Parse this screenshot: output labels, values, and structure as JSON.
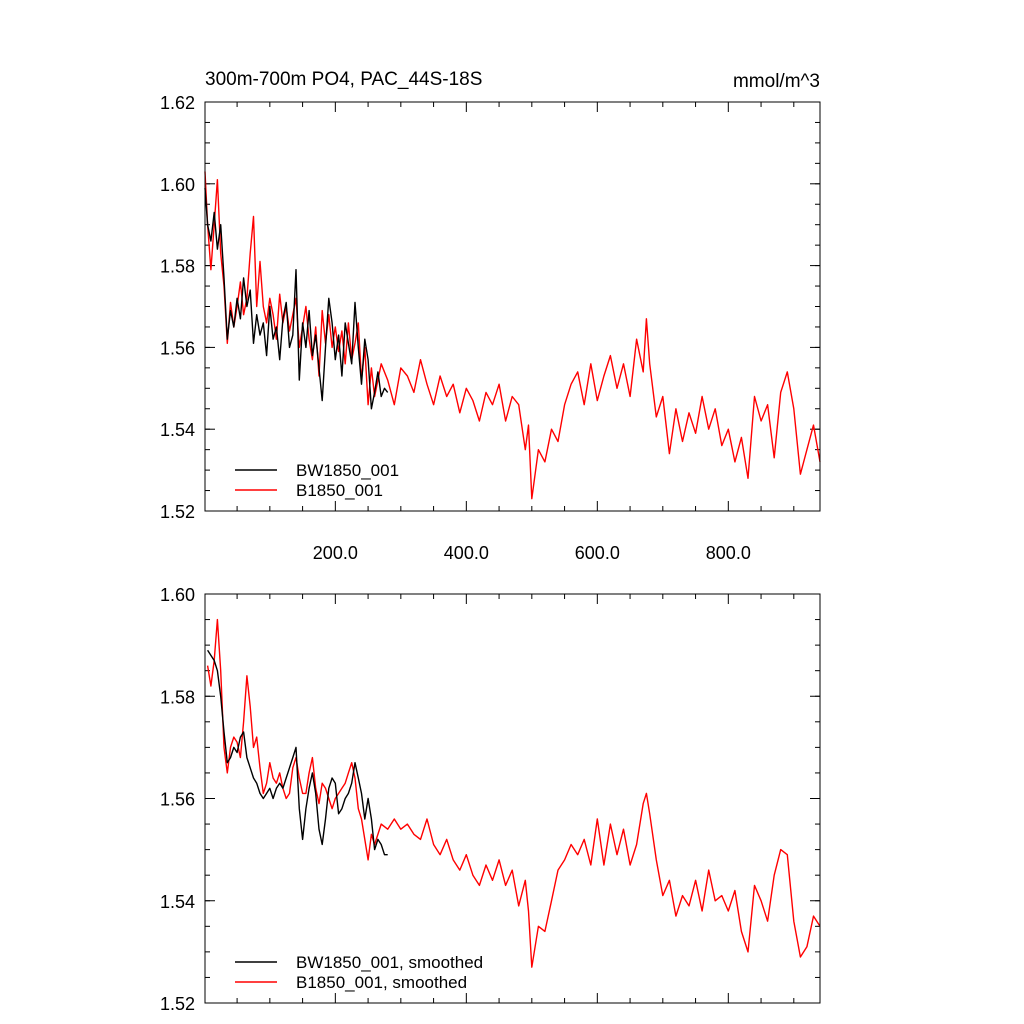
{
  "chart_data": [
    {
      "type": "line",
      "title": "300m-700m PO4, PAC_44S-18S",
      "units": "mmol/m^3",
      "xlim": [
        1,
        940
      ],
      "ylim": [
        1.52,
        1.62
      ],
      "x_ticks": [
        200,
        400,
        600,
        800
      ],
      "x_tick_labels": [
        "200.0",
        "400.0",
        "600.0",
        "800.0"
      ],
      "y_ticks": [
        1.52,
        1.54,
        1.56,
        1.58,
        1.6,
        1.62
      ],
      "y_tick_labels": [
        "1.52",
        "1.54",
        "1.56",
        "1.58",
        "1.60",
        "1.62"
      ],
      "legend_position": "bottom-left",
      "series": [
        {
          "name": "BW1850_001",
          "color": "#000000",
          "x": [
            1,
            5,
            10,
            15,
            20,
            25,
            30,
            35,
            40,
            45,
            50,
            55,
            60,
            65,
            70,
            75,
            80,
            85,
            90,
            95,
            100,
            105,
            110,
            115,
            120,
            125,
            130,
            135,
            140,
            145,
            150,
            155,
            160,
            165,
            170,
            175,
            180,
            185,
            190,
            195,
            200,
            205,
            210,
            215,
            220,
            225,
            230,
            235,
            240,
            245,
            250,
            255,
            260,
            265,
            270,
            275,
            280
          ],
          "values": [
            1.599,
            1.59,
            1.586,
            1.593,
            1.584,
            1.59,
            1.577,
            1.562,
            1.569,
            1.565,
            1.572,
            1.567,
            1.577,
            1.57,
            1.574,
            1.561,
            1.568,
            1.563,
            1.566,
            1.558,
            1.57,
            1.562,
            1.565,
            1.557,
            1.567,
            1.571,
            1.56,
            1.563,
            1.579,
            1.552,
            1.566,
            1.56,
            1.569,
            1.558,
            1.563,
            1.555,
            1.547,
            1.56,
            1.572,
            1.566,
            1.557,
            1.563,
            1.553,
            1.566,
            1.561,
            1.556,
            1.571,
            1.56,
            1.551,
            1.562,
            1.557,
            1.545,
            1.549,
            1.554,
            1.548,
            1.55,
            1.549
          ]
        },
        {
          "name": "B1850_001",
          "color": "#ff0000",
          "x": [
            1,
            5,
            10,
            15,
            20,
            25,
            30,
            35,
            40,
            45,
            50,
            55,
            60,
            65,
            70,
            75,
            80,
            85,
            90,
            95,
            100,
            105,
            110,
            115,
            120,
            125,
            130,
            135,
            140,
            145,
            150,
            155,
            160,
            165,
            170,
            175,
            180,
            185,
            190,
            195,
            200,
            205,
            210,
            215,
            220,
            225,
            230,
            235,
            240,
            245,
            250,
            255,
            260,
            270,
            280,
            290,
            300,
            310,
            320,
            330,
            340,
            350,
            360,
            370,
            380,
            390,
            400,
            410,
            420,
            430,
            440,
            450,
            460,
            470,
            480,
            490,
            495,
            500,
            510,
            520,
            530,
            540,
            550,
            560,
            570,
            580,
            590,
            600,
            610,
            620,
            630,
            640,
            650,
            660,
            670,
            675,
            680,
            690,
            700,
            710,
            720,
            730,
            740,
            750,
            760,
            770,
            780,
            790,
            800,
            810,
            820,
            830,
            840,
            850,
            860,
            870,
            880,
            890,
            900,
            910,
            920,
            930,
            940
          ],
          "values": [
            1.603,
            1.59,
            1.579,
            1.59,
            1.601,
            1.583,
            1.575,
            1.561,
            1.571,
            1.565,
            1.57,
            1.576,
            1.568,
            1.572,
            1.583,
            1.592,
            1.57,
            1.581,
            1.57,
            1.566,
            1.572,
            1.568,
            1.562,
            1.573,
            1.566,
            1.57,
            1.564,
            1.568,
            1.572,
            1.56,
            1.565,
            1.57,
            1.562,
            1.557,
            1.565,
            1.553,
            1.569,
            1.561,
            1.568,
            1.56,
            1.565,
            1.559,
            1.564,
            1.556,
            1.566,
            1.557,
            1.561,
            1.566,
            1.552,
            1.56,
            1.546,
            1.555,
            1.548,
            1.556,
            1.552,
            1.546,
            1.555,
            1.553,
            1.549,
            1.557,
            1.551,
            1.546,
            1.553,
            1.548,
            1.551,
            1.544,
            1.55,
            1.547,
            1.542,
            1.549,
            1.546,
            1.551,
            1.542,
            1.548,
            1.546,
            1.535,
            1.541,
            1.523,
            1.535,
            1.532,
            1.54,
            1.537,
            1.546,
            1.551,
            1.554,
            1.546,
            1.556,
            1.547,
            1.553,
            1.558,
            1.55,
            1.556,
            1.548,
            1.562,
            1.554,
            1.567,
            1.556,
            1.543,
            1.548,
            1.534,
            1.545,
            1.537,
            1.544,
            1.539,
            1.548,
            1.54,
            1.545,
            1.536,
            1.54,
            1.532,
            1.538,
            1.528,
            1.548,
            1.542,
            1.546,
            1.533,
            1.549,
            1.554,
            1.545,
            1.529,
            1.535,
            1.541,
            1.532
          ]
        }
      ]
    },
    {
      "type": "line",
      "xlim": [
        1,
        940
      ],
      "ylim": [
        1.52,
        1.6
      ],
      "x_ticks": [
        200,
        400,
        600,
        800
      ],
      "y_ticks": [
        1.52,
        1.54,
        1.56,
        1.58,
        1.6
      ],
      "y_tick_labels": [
        "1.52",
        "1.54",
        "1.56",
        "1.58",
        "1.60"
      ],
      "legend_position": "bottom-left",
      "series": [
        {
          "name": "BW1850_001, smoothed",
          "color": "#000000",
          "x": [
            5,
            10,
            15,
            20,
            25,
            30,
            35,
            40,
            45,
            50,
            55,
            60,
            65,
            70,
            75,
            80,
            85,
            90,
            95,
            100,
            105,
            110,
            115,
            120,
            125,
            130,
            135,
            140,
            145,
            150,
            155,
            160,
            165,
            170,
            175,
            180,
            185,
            190,
            195,
            200,
            205,
            210,
            215,
            220,
            225,
            230,
            235,
            240,
            245,
            250,
            255,
            260,
            265,
            270,
            275,
            280
          ],
          "values": [
            1.589,
            1.588,
            1.587,
            1.585,
            1.58,
            1.573,
            1.567,
            1.568,
            1.57,
            1.569,
            1.572,
            1.573,
            1.568,
            1.566,
            1.564,
            1.563,
            1.561,
            1.56,
            1.561,
            1.562,
            1.56,
            1.562,
            1.563,
            1.562,
            1.564,
            1.566,
            1.568,
            1.57,
            1.558,
            1.552,
            1.558,
            1.562,
            1.565,
            1.561,
            1.554,
            1.551,
            1.556,
            1.562,
            1.564,
            1.563,
            1.557,
            1.558,
            1.56,
            1.561,
            1.563,
            1.567,
            1.564,
            1.561,
            1.556,
            1.56,
            1.556,
            1.55,
            1.552,
            1.551,
            1.549,
            1.549
          ]
        },
        {
          "name": "B1850_001, smoothed",
          "color": "#ff0000",
          "x": [
            5,
            10,
            15,
            20,
            25,
            30,
            35,
            40,
            45,
            50,
            55,
            60,
            65,
            70,
            75,
            80,
            85,
            90,
            95,
            100,
            105,
            110,
            115,
            120,
            125,
            130,
            135,
            140,
            145,
            150,
            155,
            160,
            165,
            170,
            175,
            180,
            185,
            190,
            195,
            200,
            205,
            210,
            215,
            220,
            225,
            230,
            235,
            240,
            245,
            250,
            255,
            260,
            270,
            280,
            290,
            300,
            310,
            320,
            330,
            340,
            350,
            360,
            370,
            380,
            390,
            400,
            410,
            420,
            430,
            440,
            450,
            460,
            470,
            480,
            490,
            495,
            500,
            510,
            520,
            530,
            540,
            550,
            560,
            570,
            580,
            590,
            600,
            610,
            620,
            630,
            640,
            650,
            660,
            670,
            675,
            680,
            690,
            700,
            710,
            720,
            730,
            740,
            750,
            760,
            770,
            780,
            790,
            800,
            810,
            820,
            830,
            840,
            850,
            860,
            870,
            880,
            890,
            900,
            910,
            920,
            930,
            940
          ],
          "values": [
            1.586,
            1.582,
            1.587,
            1.595,
            1.585,
            1.57,
            1.565,
            1.57,
            1.572,
            1.571,
            1.568,
            1.575,
            1.584,
            1.578,
            1.57,
            1.572,
            1.566,
            1.561,
            1.563,
            1.567,
            1.564,
            1.563,
            1.565,
            1.562,
            1.56,
            1.561,
            1.566,
            1.568,
            1.564,
            1.561,
            1.561,
            1.565,
            1.568,
            1.562,
            1.559,
            1.563,
            1.562,
            1.56,
            1.558,
            1.56,
            1.561,
            1.562,
            1.563,
            1.565,
            1.567,
            1.564,
            1.558,
            1.556,
            1.552,
            1.548,
            1.553,
            1.551,
            1.555,
            1.554,
            1.556,
            1.554,
            1.555,
            1.553,
            1.552,
            1.556,
            1.551,
            1.549,
            1.552,
            1.548,
            1.546,
            1.549,
            1.545,
            1.543,
            1.547,
            1.544,
            1.548,
            1.543,
            1.546,
            1.539,
            1.544,
            1.538,
            1.527,
            1.535,
            1.534,
            1.54,
            1.546,
            1.548,
            1.551,
            1.549,
            1.552,
            1.547,
            1.556,
            1.547,
            1.555,
            1.549,
            1.554,
            1.547,
            1.551,
            1.559,
            1.561,
            1.557,
            1.548,
            1.541,
            1.544,
            1.537,
            1.541,
            1.539,
            1.544,
            1.538,
            1.546,
            1.54,
            1.541,
            1.538,
            1.542,
            1.534,
            1.53,
            1.543,
            1.54,
            1.536,
            1.545,
            1.55,
            1.549,
            1.536,
            1.529,
            1.531,
            1.537,
            1.535
          ]
        }
      ]
    }
  ]
}
